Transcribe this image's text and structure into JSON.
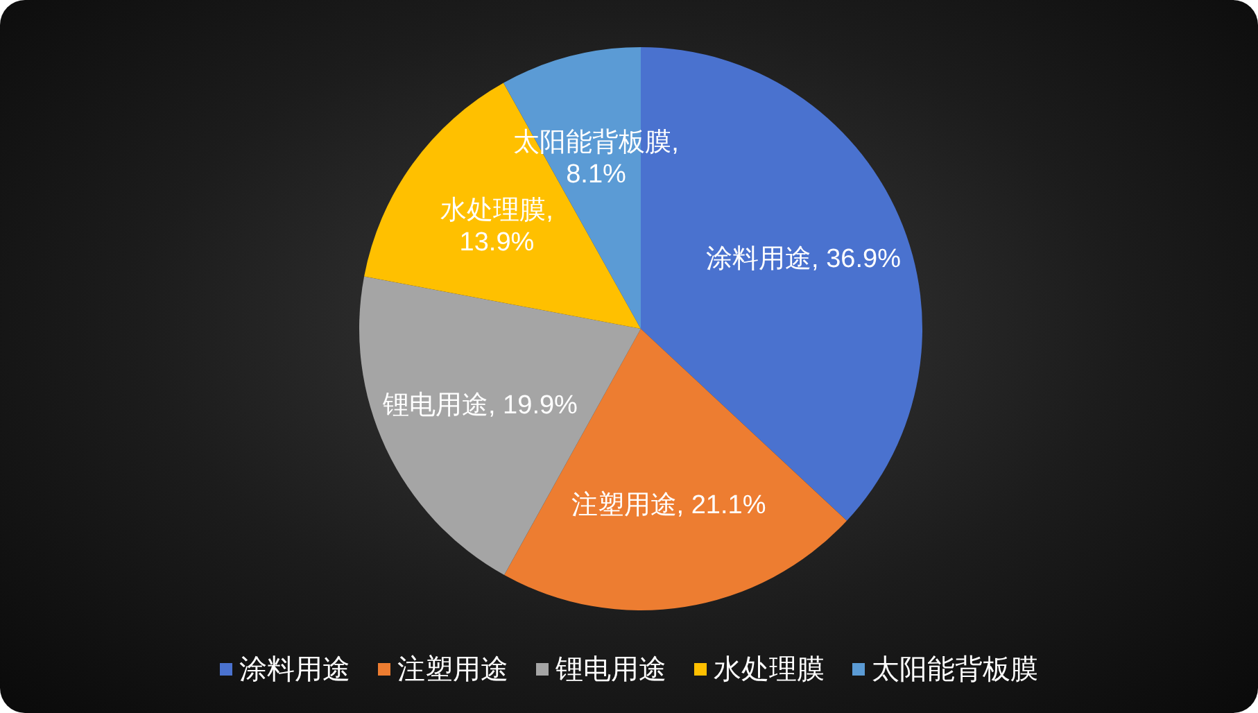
{
  "chart_data": {
    "type": "pie",
    "categories": [
      "涂料用途",
      "注塑用途",
      "锂电用途",
      "水处理膜",
      "太阳能背板膜"
    ],
    "values": [
      36.9,
      21.1,
      19.9,
      13.9,
      8.1
    ],
    "colors": [
      "#4a72cf",
      "#ed7d31",
      "#a5a5a5",
      "#ffc000",
      "#5b9bd5"
    ],
    "value_labels": [
      "涂料用途, 36.9%",
      "注塑用途, 21.1%",
      "锂电用途, 19.9%",
      "水处理膜, 13.9%",
      "太阳能背板膜, 8.1%"
    ],
    "legend": "bottom"
  }
}
